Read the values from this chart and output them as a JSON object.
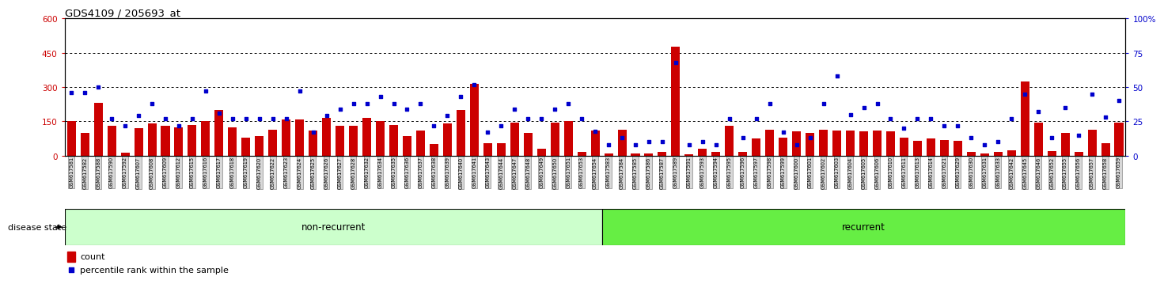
{
  "title": "GDS4109 / 205693_at",
  "samples": [
    "GSM617581",
    "GSM617582",
    "GSM617588",
    "GSM617590",
    "GSM617592",
    "GSM617607",
    "GSM617608",
    "GSM617609",
    "GSM617612",
    "GSM617615",
    "GSM617616",
    "GSM617617",
    "GSM617618",
    "GSM617619",
    "GSM617620",
    "GSM617622",
    "GSM617623",
    "GSM617624",
    "GSM617625",
    "GSM617626",
    "GSM617627",
    "GSM617628",
    "GSM617632",
    "GSM617634",
    "GSM617635",
    "GSM617636",
    "GSM617637",
    "GSM617638",
    "GSM617639",
    "GSM617640",
    "GSM617641",
    "GSM617643",
    "GSM617644",
    "GSM617647",
    "GSM617648",
    "GSM617649",
    "GSM617650",
    "GSM617651",
    "GSM617653",
    "GSM617654",
    "GSM617583",
    "GSM617584",
    "GSM617585",
    "GSM617586",
    "GSM617587",
    "GSM617589",
    "GSM617591",
    "GSM617593",
    "GSM617594",
    "GSM617595",
    "GSM617596",
    "GSM617597",
    "GSM617598",
    "GSM617599",
    "GSM617600",
    "GSM617601",
    "GSM617602",
    "GSM617603",
    "GSM617604",
    "GSM617605",
    "GSM617606",
    "GSM617610",
    "GSM617611",
    "GSM617613",
    "GSM617614",
    "GSM617621",
    "GSM617629",
    "GSM617630",
    "GSM617631",
    "GSM617633",
    "GSM617642",
    "GSM617645",
    "GSM617646",
    "GSM617652",
    "GSM617655",
    "GSM617656",
    "GSM617657",
    "GSM617658",
    "GSM617659"
  ],
  "counts": [
    150,
    100,
    230,
    130,
    12,
    120,
    140,
    130,
    125,
    135,
    150,
    200,
    125,
    80,
    85,
    115,
    160,
    160,
    110,
    165,
    130,
    130,
    165,
    150,
    135,
    85,
    110,
    50,
    140,
    200,
    315,
    55,
    55,
    145,
    100,
    30,
    145,
    150,
    15,
    110,
    10,
    115,
    10,
    10,
    15,
    475,
    5,
    30,
    15,
    130,
    15,
    75,
    115,
    80,
    105,
    100,
    115,
    110,
    110,
    105,
    110,
    105,
    80,
    65,
    75,
    70,
    65,
    15,
    10,
    15,
    25,
    325,
    145,
    20,
    100,
    15,
    115,
    55,
    145
  ],
  "percentile_ranks": [
    46,
    46,
    50,
    27,
    22,
    29,
    38,
    27,
    22,
    27,
    47,
    31,
    27,
    27,
    27,
    27,
    27,
    47,
    17,
    29,
    34,
    38,
    38,
    43,
    38,
    34,
    38,
    22,
    29,
    43,
    52,
    17,
    22,
    34,
    27,
    27,
    34,
    38,
    27,
    18,
    8,
    13,
    8,
    10,
    10,
    68,
    8,
    10,
    8,
    27,
    13,
    27,
    38,
    17,
    8,
    13,
    38,
    58,
    30,
    35,
    38,
    27,
    20,
    27,
    27,
    22,
    22,
    13,
    8,
    10,
    27,
    45,
    32,
    13,
    35,
    15,
    45,
    28,
    40
  ],
  "non_recurrent_count": 40,
  "recurrent_count": 39,
  "group_labels": [
    "non-recurrent",
    "recurrent"
  ],
  "left_yticks": [
    0,
    150,
    300,
    450,
    600
  ],
  "right_yticks": [
    0,
    25,
    50,
    75,
    100
  ],
  "left_ylim": [
    0,
    600
  ],
  "right_ylim": [
    0,
    100
  ],
  "bar_color": "#cc0000",
  "dot_color": "#0000cc",
  "nonrecurrent_bg": "#ccffcc",
  "recurrent_bg": "#66ee44",
  "legend_count_label": "count",
  "legend_pct_label": "percentile rank within the sample",
  "disease_state_label": "disease state"
}
